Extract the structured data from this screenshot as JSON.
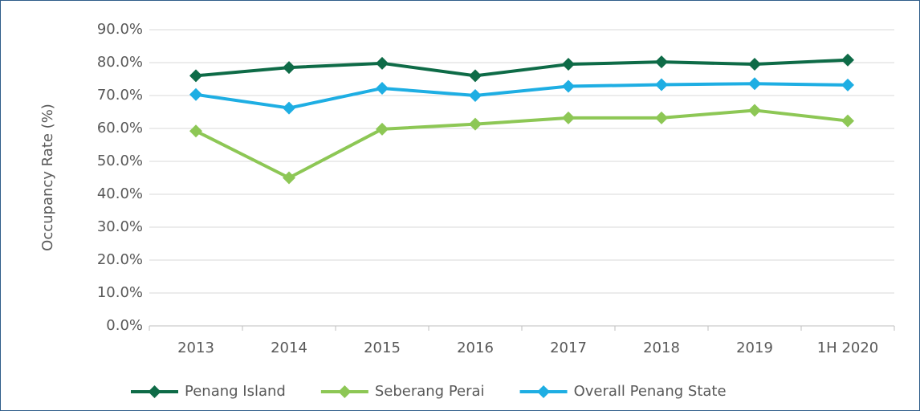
{
  "chart_data": {
    "type": "line",
    "ylabel": "Occupancy Rate (%)",
    "categories": [
      "2013",
      "2014",
      "2015",
      "2016",
      "2017",
      "2018",
      "2019",
      "1H 2020"
    ],
    "series": [
      {
        "name": "Penang Island",
        "color": "#0e6b47",
        "values": [
          76.0,
          78.5,
          79.8,
          76.0,
          79.5,
          80.2,
          79.5,
          80.8
        ]
      },
      {
        "name": "Seberang Perai",
        "color": "#8dc755",
        "values": [
          59.2,
          45.0,
          59.8,
          61.3,
          63.2,
          63.2,
          65.5,
          62.3
        ]
      },
      {
        "name": "Overall Penang State",
        "color": "#1eaee3",
        "values": [
          70.3,
          66.2,
          72.2,
          70.0,
          72.8,
          73.3,
          73.6,
          73.2
        ]
      }
    ],
    "ylim": [
      0,
      90
    ],
    "yticks": [
      {
        "value": 0,
        "label": "0.0%"
      },
      {
        "value": 10,
        "label": "10.0%"
      },
      {
        "value": 20,
        "label": "20.0%"
      },
      {
        "value": 30,
        "label": "30.0%"
      },
      {
        "value": 40,
        "label": "40.0%"
      },
      {
        "value": 50,
        "label": "50.0%"
      },
      {
        "value": 60,
        "label": "60.0%"
      },
      {
        "value": 70,
        "label": "70.0%"
      },
      {
        "value": 80,
        "label": "80.0%"
      },
      {
        "value": 90,
        "label": "90.0%"
      }
    ],
    "grid": true,
    "legend": "bottom"
  }
}
